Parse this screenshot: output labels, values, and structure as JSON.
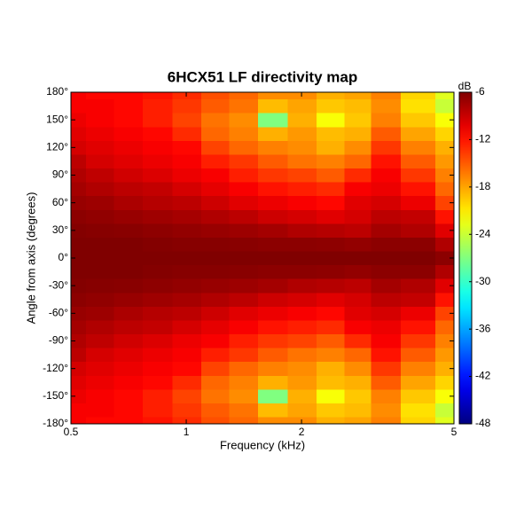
{
  "chart_data": {
    "type": "heatmap",
    "title": "6HCX51 LF directivity map",
    "xlabel": "Frequency (kHz)",
    "ylabel": "Angle from axis (degrees)",
    "colorbar_label": "dB",
    "xscale": "log",
    "colormap": "jet",
    "xlim": [
      0.5,
      5
    ],
    "xticks": [
      0.5,
      1,
      2,
      5
    ],
    "ylim": [
      -180,
      180
    ],
    "yticks": [
      {
        "value": 180,
        "label": "180°"
      },
      {
        "value": 150,
        "label": "150°"
      },
      {
        "value": 120,
        "label": "120°"
      },
      {
        "value": 90,
        "label": "90°"
      },
      {
        "value": 60,
        "label": "60°"
      },
      {
        "value": 30,
        "label": "30°"
      },
      {
        "value": 0,
        "label": "0°"
      },
      {
        "value": -30,
        "label": "-30°"
      },
      {
        "value": -60,
        "label": "-60°"
      },
      {
        "value": -90,
        "label": "-90°"
      },
      {
        "value": -120,
        "label": "-120°"
      },
      {
        "value": -150,
        "label": "-150°"
      },
      {
        "value": -180,
        "label": "-180°"
      }
    ],
    "clim": [
      -48,
      -6
    ],
    "cticks": [
      -6,
      -12,
      -18,
      -24,
      -30,
      -36,
      -42,
      -48
    ],
    "x": [
      0.5,
      0.6,
      0.7,
      0.85,
      1,
      1.2,
      1.4,
      1.7,
      2,
      2.4,
      2.8,
      3.3,
      4,
      5
    ],
    "y": [
      -180,
      -165,
      -150,
      -135,
      -120,
      -105,
      -90,
      -75,
      -60,
      -45,
      -30,
      -15,
      0,
      15,
      30,
      45,
      60,
      75,
      90,
      105,
      120,
      135,
      150,
      165,
      180
    ],
    "z": [
      [
        -11,
        -11.5,
        -11.5,
        -12,
        -13,
        -14.5,
        -15.5,
        -17,
        -17,
        -18.5,
        -18,
        -16.5,
        -20,
        -23
      ],
      [
        -11,
        -11,
        -11.5,
        -12.5,
        -13.5,
        -15,
        -16,
        -19,
        -18,
        -19.5,
        -19,
        -17,
        -20.5,
        -24
      ],
      [
        -10.5,
        -11,
        -11.5,
        -12.5,
        -14,
        -16,
        -17,
        -27,
        -18.5,
        -22,
        -19.5,
        -16.5,
        -19.5,
        -22
      ],
      [
        -10,
        -10.5,
        -11,
        -11.5,
        -13,
        -15.5,
        -16.5,
        -18.5,
        -17.5,
        -19,
        -18.5,
        -15,
        -18,
        -20
      ],
      [
        -9.5,
        -10,
        -10.5,
        -11,
        -11.5,
        -14,
        -15.5,
        -16.5,
        -17,
        -18.5,
        -17,
        -13.5,
        -16.5,
        -18.5
      ],
      [
        -8.5,
        -9.5,
        -10,
        -10.5,
        -11,
        -12.5,
        -13.5,
        -15,
        -16,
        -16.5,
        -15.5,
        -12,
        -15,
        -17.5
      ],
      [
        -8,
        -8.6,
        -9.3,
        -9.8,
        -10.5,
        -11,
        -12.5,
        -13.5,
        -14,
        -15,
        -13,
        -11,
        -13.5,
        -16.5
      ],
      [
        -7.5,
        -8,
        -8.5,
        -8.8,
        -9.5,
        -10.2,
        -11,
        -12,
        -12.5,
        -13,
        -11,
        -10.5,
        -12,
        -15.5
      ],
      [
        -7,
        -7.2,
        -7.8,
        -8.2,
        -8.5,
        -9.2,
        -10,
        -10.5,
        -11,
        -11.5,
        -10,
        -9.5,
        -10.5,
        -14
      ],
      [
        -6.5,
        -6.7,
        -7,
        -7.3,
        -7.6,
        -8,
        -8.5,
        -9.2,
        -9.5,
        -10,
        -9.5,
        -8.5,
        -8.8,
        -12
      ],
      [
        -6.2,
        -6.3,
        -6.4,
        -6.6,
        -6.8,
        -7,
        -7.2,
        -7.5,
        -8,
        -8.2,
        -8.5,
        -7.5,
        -8,
        -10
      ],
      [
        -6,
        -6,
        -6,
        -6.2,
        -6.3,
        -6.3,
        -6.4,
        -6.5,
        -6.5,
        -6.6,
        -6.8,
        -6.5,
        -6.5,
        -8
      ],
      [
        -6,
        -6,
        -6,
        -6,
        -6,
        -6,
        -6,
        -6,
        -6,
        -6,
        -6,
        -6,
        -6,
        -6.5
      ],
      [
        -6,
        -6,
        -6,
        -6.2,
        -6.3,
        -6.3,
        -6.4,
        -6.5,
        -6.5,
        -6.6,
        -6.8,
        -6.5,
        -6.5,
        -8
      ],
      [
        -6.2,
        -6.3,
        -6.4,
        -6.6,
        -6.8,
        -7,
        -7.2,
        -7.5,
        -8,
        -8.2,
        -8.5,
        -7.5,
        -8,
        -10
      ],
      [
        -6.5,
        -6.7,
        -7,
        -7.3,
        -7.6,
        -8,
        -8.5,
        -9.2,
        -9.5,
        -10,
        -9.5,
        -8.5,
        -8.8,
        -12
      ],
      [
        -7,
        -7.2,
        -7.8,
        -8.2,
        -8.5,
        -9.2,
        -10,
        -10.5,
        -11,
        -11.5,
        -10,
        -9.5,
        -10.5,
        -14
      ],
      [
        -7.5,
        -8,
        -8.5,
        -8.8,
        -9.5,
        -10.2,
        -11,
        -12,
        -12.5,
        -13,
        -11,
        -10.5,
        -12,
        -15.5
      ],
      [
        -8,
        -8.6,
        -9.3,
        -9.8,
        -10.5,
        -11,
        -12.5,
        -13.5,
        -14,
        -15,
        -13,
        -11,
        -13.5,
        -16.5
      ],
      [
        -8.5,
        -9.5,
        -10,
        -10.5,
        -11,
        -12.5,
        -13.5,
        -15,
        -16,
        -16.5,
        -15.5,
        -12,
        -15,
        -17.5
      ],
      [
        -9.5,
        -10,
        -10.5,
        -11,
        -11.5,
        -14,
        -15.5,
        -16.5,
        -17,
        -18.5,
        -17,
        -13.5,
        -16.5,
        -18.5
      ],
      [
        -10,
        -10.5,
        -11,
        -11.5,
        -13,
        -15.5,
        -16.5,
        -18.5,
        -17.5,
        -19,
        -18.5,
        -15,
        -18,
        -20
      ],
      [
        -10.5,
        -11,
        -11.5,
        -12.5,
        -14,
        -16,
        -17,
        -27,
        -18.5,
        -22,
        -19.5,
        -16.5,
        -19.5,
        -22
      ],
      [
        -11,
        -11,
        -11.5,
        -12.5,
        -13.5,
        -15,
        -16,
        -19,
        -18,
        -19.5,
        -19,
        -17,
        -20.5,
        -24
      ],
      [
        -11,
        -11.5,
        -11.5,
        -12,
        -13,
        -14.5,
        -15.5,
        -17,
        -17,
        -18.5,
        -18,
        -16.5,
        -20,
        -23
      ]
    ]
  }
}
